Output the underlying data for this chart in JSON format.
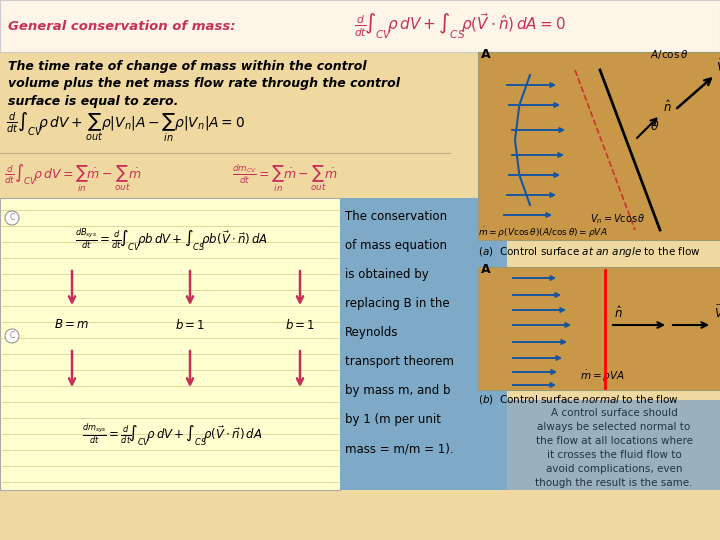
{
  "bg_color": "#f0d9a0",
  "header_bg": "#fdf5e8",
  "pink": "#c8305a",
  "black": "#111111",
  "notepad_bg": "#ffffd0",
  "notepad_line": "#cccc88",
  "cons_box_bg": "#7eaac8",
  "note_box_bg": "#9ab0bc",
  "diagram_bg": "#c89848",
  "blue_arrow": "#1855a0",
  "dark_text": "#223344",
  "gray_border": "#999977",
  "header_title": "General conservation of mass:",
  "desc1": "The time rate of change of mass within the control",
  "desc2": "volume plus the net mass flow rate through the control",
  "desc3": "surface is equal to zero.",
  "cons_lines": [
    "The conservation",
    "of mass equation",
    "is obtained by",
    "replacing B in the",
    "Reynolds",
    "transport theorem",
    "by mass m, and b",
    "by 1 (m per unit",
    "mass = m/m = 1)."
  ],
  "note_lines": [
    "A control surface should",
    "always be selected normal to",
    "the flow at all locations where",
    "it crosses the fluid flow to",
    "avoid complications, even",
    "though the result is the same."
  ]
}
